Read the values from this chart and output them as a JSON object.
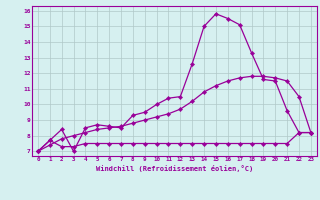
{
  "xlabel": "Windchill (Refroidissement éolien,°C)",
  "background_color": "#d6f0f0",
  "line_color": "#990099",
  "grid_color": "#b0c8c8",
  "xlim": [
    -0.5,
    23.5
  ],
  "ylim": [
    6.7,
    16.3
  ],
  "xtick_labels": [
    "0",
    "1",
    "2",
    "3",
    "4",
    "5",
    "6",
    "7",
    "8",
    "9",
    "10",
    "11",
    "12",
    "13",
    "14",
    "15",
    "16",
    "17",
    "18",
    "19",
    "20",
    "21",
    "22",
    "23"
  ],
  "ytick_labels": [
    "7",
    "8",
    "9",
    "10",
    "11",
    "12",
    "13",
    "14",
    "15",
    "16"
  ],
  "series": [
    {
      "x": [
        0,
        1,
        2,
        3,
        4,
        5,
        6,
        7,
        8,
        9,
        10,
        11,
        12,
        13,
        14,
        15,
        16,
        17,
        18,
        19,
        20,
        21,
        22,
        23
      ],
      "y": [
        7.0,
        7.7,
        8.4,
        7.0,
        8.5,
        8.7,
        8.6,
        8.5,
        9.3,
        9.5,
        10.0,
        10.4,
        10.5,
        12.6,
        15.0,
        15.8,
        15.5,
        15.1,
        13.3,
        11.6,
        11.5,
        9.6,
        8.2,
        8.2
      ]
    },
    {
      "x": [
        0,
        1,
        2,
        3,
        4,
        5,
        6,
        7,
        8,
        9,
        10,
        11,
        12,
        13,
        14,
        15,
        16,
        17,
        18,
        19,
        20,
        21,
        22,
        23
      ],
      "y": [
        7.0,
        7.7,
        7.3,
        7.3,
        7.5,
        7.5,
        7.5,
        7.5,
        7.5,
        7.5,
        7.5,
        7.5,
        7.5,
        7.5,
        7.5,
        7.5,
        7.5,
        7.5,
        7.5,
        7.5,
        7.5,
        7.5,
        8.2,
        8.2
      ]
    },
    {
      "x": [
        0,
        1,
        2,
        3,
        4,
        5,
        6,
        7,
        8,
        9,
        10,
        11,
        12,
        13,
        14,
        15,
        16,
        17,
        18,
        19,
        20,
        21,
        22,
        23
      ],
      "y": [
        7.0,
        7.4,
        7.8,
        8.0,
        8.2,
        8.4,
        8.5,
        8.6,
        8.8,
        9.0,
        9.2,
        9.4,
        9.7,
        10.2,
        10.8,
        11.2,
        11.5,
        11.7,
        11.8,
        11.8,
        11.7,
        11.5,
        10.5,
        8.2
      ]
    }
  ]
}
